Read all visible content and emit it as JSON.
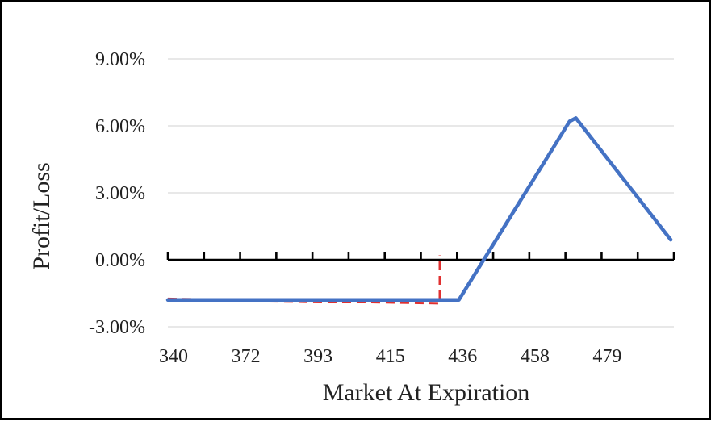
{
  "chart_data": {
    "type": "line",
    "title": "",
    "xlabel": "Market At Expiration",
    "ylabel": "Profit/Loss",
    "x_tick_labels": [
      "340",
      "372",
      "393",
      "415",
      "436",
      "458",
      "479"
    ],
    "y_tick_labels": [
      "-3.00%",
      "0.00%",
      "3.00%",
      "6.00%",
      "9.00%"
    ],
    "y_ticks": [
      -3.0,
      0.0,
      3.0,
      6.0,
      9.0
    ],
    "xlim": [
      340,
      500
    ],
    "ylim": [
      -3.0,
      9.0
    ],
    "y_unit": "%",
    "grid": {
      "horizontal": true,
      "vertical": false
    },
    "legend": "none",
    "series": [
      {
        "style": "solid",
        "color": "#4472C4",
        "x": [
          340,
          432,
          467,
          469,
          499
        ],
        "y": [
          -1.8,
          -1.8,
          6.2,
          6.35,
          0.9
        ]
      },
      {
        "style": "dashed",
        "color": "#E03030",
        "x": [
          340,
          426,
          426
        ],
        "y": [
          -1.75,
          -1.95,
          0.2
        ]
      }
    ]
  }
}
